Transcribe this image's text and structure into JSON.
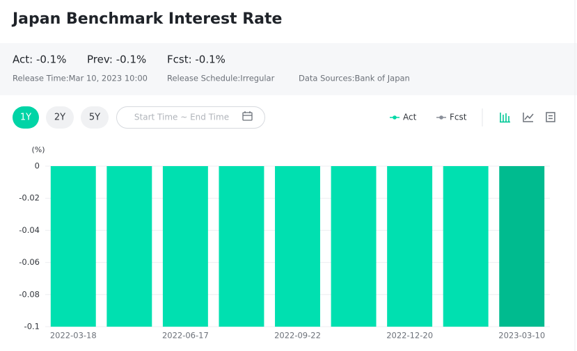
{
  "header": {
    "title": "Japan Benchmark Interest Rate",
    "stats": [
      "Act: -0.1%",
      "Prev: -0.1%",
      "Fcst: -0.1%"
    ],
    "details": [
      "Release Time:Mar 10, 2023 10:00",
      "Release Schedule:Irregular",
      "Data Sources:Bank of Japan"
    ]
  },
  "controls": {
    "ranges": [
      "1Y",
      "2Y",
      "5Y"
    ],
    "date_placeholder": "Start Time ~ End Time"
  },
  "chart_data": {
    "type": "bar",
    "y_unit": "(%)",
    "categories": [
      "2022-03-18",
      null,
      "2022-06-17",
      null,
      "2022-09-22",
      null,
      "2022-12-20",
      null,
      "2023-03-10"
    ],
    "series": [
      {
        "name": "Act",
        "color": "#00d9a6",
        "values": [
          -0.1,
          -0.1,
          -0.1,
          -0.1,
          -0.1,
          -0.1,
          -0.1,
          -0.1,
          -0.1
        ],
        "bar_colors": [
          "#00e0b0",
          "#00e0b0",
          "#00e0b0",
          "#00e0b0",
          "#00e0b0",
          "#00e0b0",
          "#00e0b0",
          "#00e0b0",
          "#00bb8f"
        ]
      },
      {
        "name": "Fcst",
        "color": "#8a8f99",
        "values": [
          null,
          null,
          null,
          null,
          null,
          null,
          null,
          null,
          null
        ]
      }
    ],
    "ylim": [
      -0.1,
      0
    ],
    "yticks": [
      0,
      -0.02,
      -0.04,
      -0.06,
      -0.08,
      -0.1
    ],
    "grid": true
  }
}
